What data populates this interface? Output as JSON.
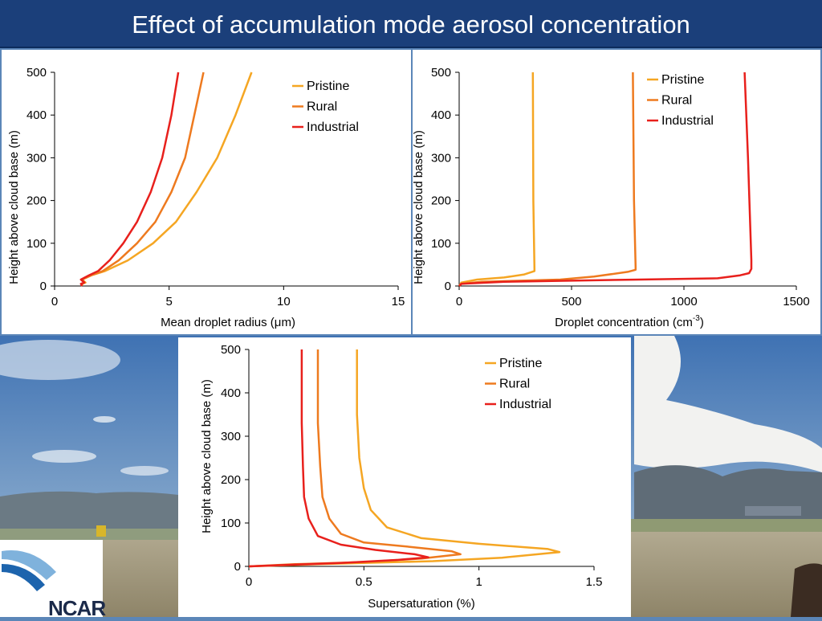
{
  "slide": {
    "title": "Effect of accumulation mode aerosol concentration",
    "logo_text": "NCAR"
  },
  "colors": {
    "pristine": "#f5a623",
    "rural": "#ee7a1f",
    "industrial": "#e8201c",
    "title_bg": "#1b3f7a"
  },
  "chart_data": [
    {
      "type": "line",
      "xlabel": "Mean droplet radius (μm)",
      "ylabel": "Height above cloud base (m)",
      "xlim": [
        0,
        15
      ],
      "ylim": [
        0,
        500
      ],
      "xticks": [
        0,
        5,
        10,
        15
      ],
      "yticks": [
        0,
        100,
        200,
        300,
        400,
        500
      ],
      "legend": "top-right",
      "series": [
        {
          "name": "Pristine",
          "color": "#f5a623",
          "x": [
            1.2,
            1.2,
            1.35,
            1.2,
            1.6,
            2.2,
            3.2,
            4.3,
            5.3,
            6.2,
            7.1,
            7.9,
            8.6
          ],
          "y": [
            0,
            5,
            8,
            15,
            25,
            35,
            60,
            100,
            150,
            220,
            300,
            400,
            500
          ]
        },
        {
          "name": "Rural",
          "color": "#ee7a1f",
          "x": [
            1.2,
            1.2,
            1.3,
            1.2,
            1.6,
            2.1,
            2.8,
            3.6,
            4.4,
            5.1,
            5.7,
            6.1,
            6.5
          ],
          "y": [
            0,
            5,
            8,
            15,
            25,
            35,
            60,
            100,
            150,
            220,
            300,
            400,
            500
          ]
        },
        {
          "name": "Industrial",
          "color": "#e8201c",
          "x": [
            1.2,
            1.15,
            1.3,
            1.15,
            1.5,
            1.9,
            2.4,
            3.0,
            3.6,
            4.2,
            4.7,
            5.1,
            5.4
          ],
          "y": [
            0,
            5,
            8,
            15,
            25,
            35,
            60,
            100,
            150,
            220,
            300,
            400,
            500
          ]
        }
      ]
    },
    {
      "type": "line",
      "xlabel": "Droplet concentration (cm",
      "xlabel_sup": "-3",
      "xlabel_end": ")",
      "ylabel": "Height above cloud base (m)",
      "xlim": [
        0,
        1500
      ],
      "ylim": [
        0,
        500
      ],
      "xticks": [
        0,
        500,
        1000,
        1500
      ],
      "yticks": [
        0,
        100,
        200,
        300,
        400,
        500
      ],
      "legend": "top-right",
      "series": [
        {
          "name": "Pristine",
          "color": "#f5a623",
          "x": [
            0,
            10,
            80,
            200,
            290,
            335,
            335,
            330,
            328
          ],
          "y": [
            0,
            8,
            15,
            20,
            27,
            35,
            40,
            200,
            500
          ]
        },
        {
          "name": "Rural",
          "color": "#ee7a1f",
          "x": [
            0,
            10,
            100,
            450,
            600,
            750,
            785,
            785,
            778,
            773
          ],
          "y": [
            0,
            5,
            10,
            15,
            22,
            33,
            38,
            45,
            200,
            500
          ]
        },
        {
          "name": "Industrial",
          "color": "#e8201c",
          "x": [
            0,
            10,
            200,
            800,
            1150,
            1250,
            1290,
            1300,
            1300,
            1285,
            1270
          ],
          "y": [
            0,
            5,
            10,
            15,
            18,
            25,
            30,
            40,
            60,
            300,
            500
          ]
        }
      ]
    },
    {
      "type": "line",
      "xlabel": "Supersaturation (%)",
      "ylabel": "Height above cloud base (m)",
      "xlim": [
        0,
        1.5
      ],
      "ylim": [
        0,
        500
      ],
      "xticks": [
        0,
        0.5,
        1,
        1.5
      ],
      "yticks": [
        0,
        100,
        200,
        300,
        400,
        500
      ],
      "legend": "top-right",
      "series": [
        {
          "name": "Pristine",
          "color": "#f5a623",
          "x": [
            0,
            0.3,
            0.8,
            1.1,
            1.35,
            1.3,
            1.0,
            0.75,
            0.6,
            0.53,
            0.5,
            0.48,
            0.47,
            0.47
          ],
          "y": [
            0,
            5,
            12,
            20,
            33,
            40,
            52,
            65,
            90,
            130,
            180,
            250,
            350,
            500
          ]
        },
        {
          "name": "Rural",
          "color": "#ee7a1f",
          "x": [
            0,
            0.2,
            0.5,
            0.75,
            0.92,
            0.88,
            0.7,
            0.5,
            0.4,
            0.35,
            0.32,
            0.31,
            0.3,
            0.3
          ],
          "y": [
            0,
            5,
            10,
            18,
            28,
            35,
            45,
            55,
            75,
            110,
            160,
            230,
            330,
            500
          ]
        },
        {
          "name": "Industrial",
          "color": "#e8201c",
          "x": [
            0,
            0.15,
            0.4,
            0.65,
            0.78,
            0.72,
            0.55,
            0.4,
            0.3,
            0.26,
            0.24,
            0.235,
            0.23,
            0.23
          ],
          "y": [
            0,
            3,
            8,
            15,
            21,
            28,
            38,
            50,
            70,
            110,
            160,
            230,
            330,
            500
          ]
        }
      ]
    }
  ]
}
